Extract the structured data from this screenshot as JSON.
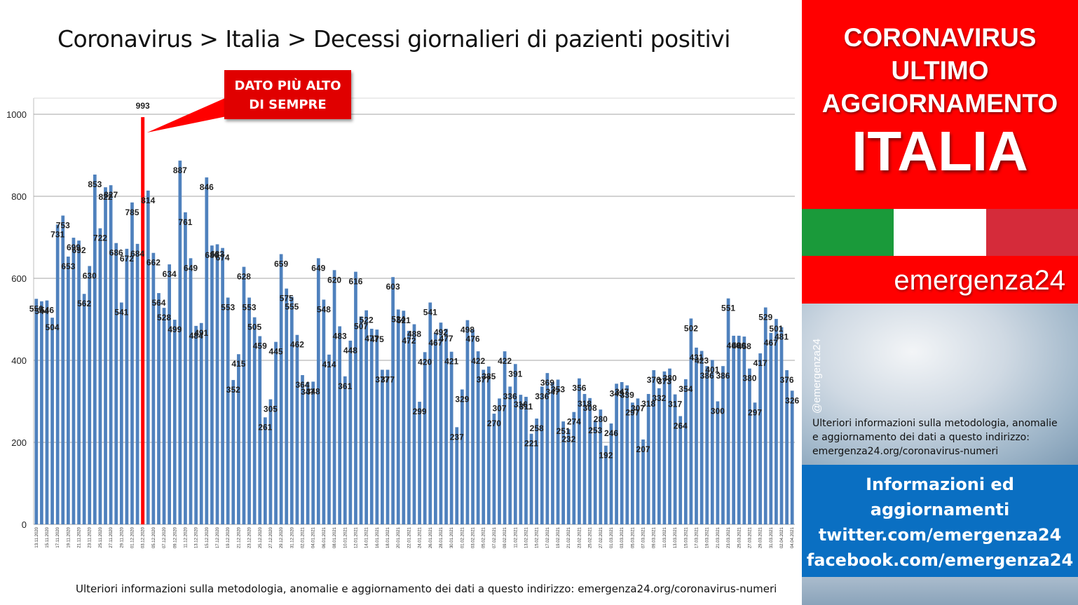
{
  "title": "Coronavirus > Italia > Decessi giornalieri di pazienti positivi",
  "callout": {
    "line1": "DATO PIÙ ALTO",
    "line2": "DI SEMPRE"
  },
  "footnote": "Ulteriori informazioni sulla metodologia, anomalie e aggiornamento dei dati a questo indirizzo: emergenza24.org/coronavirus-numeri",
  "sidebar": {
    "line1": "CORONAVIRUS",
    "line2": "ULTIMO",
    "line3": "AGGIORNAMENTO",
    "country": "ITALIA",
    "brand": "emergenza24",
    "handle": "@emergenza24",
    "info_line1": "Ulteriori informazioni sulla metodologia, anomalie",
    "info_line2": "e aggiornamento dei dati a questo indirizzo:",
    "info_line3": "emergenza24.org/coronavirus-numeri",
    "social_line1": "Informazioni ed",
    "social_line2": "aggiornamenti",
    "social_line3": "twitter.com/emergenza24",
    "social_line4": "facebook.com/emergenza24",
    "flag_colors": [
      "#1a9a3a",
      "#ffffff",
      "#d52b3a"
    ]
  },
  "colors": {
    "bar": "#4f81bd",
    "highlight": "#ff0000",
    "grid": "#a6a6a6"
  },
  "chart_data": {
    "type": "bar",
    "title": "Coronavirus > Italia > Decessi giornalieri di pazienti positivi",
    "ylim": [
      0,
      1000
    ],
    "yticks": [
      0,
      200,
      400,
      600,
      800,
      1000
    ],
    "grid": true,
    "highlight_index": 20,
    "categories": [
      "13.11.2020",
      "14.11.2020",
      "15.11.2020",
      "16.11.2020",
      "17.11.2020",
      "18.11.2020",
      "19.11.2020",
      "20.11.2020",
      "21.11.2020",
      "22.11.2020",
      "23.11.2020",
      "24.11.2020",
      "25.11.2020",
      "26.11.2020",
      "27.11.2020",
      "28.11.2020",
      "29.11.2020",
      "30.11.2020",
      "01.12.2020",
      "02.12.2020",
      "03.12.2020",
      "04.12.2020",
      "05.12.2020",
      "06.12.2020",
      "07.12.2020",
      "08.12.2020",
      "09.12.2020",
      "10.12.2020",
      "11.12.2020",
      "12.12.2020",
      "13.12.2020",
      "14.12.2020",
      "15.12.2020",
      "16.12.2020",
      "17.12.2020",
      "18.12.2020",
      "19.12.2020",
      "20.12.2020",
      "21.12.2020",
      "22.12.2020",
      "23.12.2020",
      "24.12.2020",
      "25.12.2020",
      "26.12.2020",
      "27.12.2020",
      "28.12.2020",
      "29.12.2020",
      "30.12.2020",
      "31.12.2020",
      "01.01.2021",
      "02.01.2021",
      "03.01.2021",
      "04.01.2021",
      "05.01.2021",
      "06.01.2021",
      "07.01.2021",
      "08.01.2021",
      "09.01.2021",
      "10.01.2021",
      "11.01.2021",
      "12.01.2021",
      "13.01.2021",
      "14.01.2021",
      "15.01.2021",
      "16.01.2021",
      "17.01.2021",
      "18.01.2021",
      "19.01.2021",
      "20.01.2021",
      "21.01.2021",
      "22.01.2021",
      "23.01.2021",
      "24.01.2021",
      "25.01.2021",
      "26.01.2021",
      "27.01.2021",
      "28.01.2021",
      "29.01.2021",
      "30.01.2021",
      "31.01.2021",
      "01.02.2021",
      "02.02.2021",
      "03.02.2021",
      "04.02.2021",
      "05.02.2021",
      "06.02.2021",
      "07.02.2021",
      "08.02.2021",
      "09.02.2021",
      "10.02.2021",
      "11.02.2021",
      "12.02.2021",
      "13.02.2021",
      "14.02.2021",
      "15.02.2021",
      "16.02.2021",
      "17.02.2021",
      "18.02.2021",
      "19.02.2021",
      "20.02.2021",
      "21.02.2021",
      "22.02.2021",
      "23.02.2021",
      "24.02.2021",
      "25.02.2021",
      "26.02.2021",
      "27.02.2021",
      "28.02.2021",
      "01.03.2021",
      "02.03.2021",
      "03.03.2021",
      "04.03.2021",
      "05.03.2021",
      "06.03.2021",
      "07.03.2021",
      "08.03.2021",
      "09.03.2021",
      "10.03.2021",
      "11.03.2021",
      "12.03.2021",
      "13.03.2021",
      "14.03.2021",
      "15.03.2021",
      "16.03.2021",
      "17.03.2021",
      "18.03.2021",
      "19.03.2021",
      "20.03.2021",
      "21.03.2021",
      "22.03.2021",
      "23.03.2021",
      "24.03.2021",
      "25.03.2021",
      "26.03.2021",
      "27.03.2021",
      "28.03.2021",
      "29.03.2021",
      "30.03.2021",
      "31.03.2021",
      "01.04.2021",
      "02.04.2021",
      "03.04.2021",
      "04.04.2021"
    ],
    "values": [
      550,
      544,
      546,
      504,
      731,
      753,
      653,
      699,
      692,
      562,
      630,
      853,
      722,
      822,
      827,
      686,
      541,
      672,
      785,
      684,
      993,
      814,
      662,
      564,
      528,
      634,
      499,
      887,
      761,
      649,
      484,
      491,
      846,
      680,
      683,
      674,
      553,
      352,
      415,
      628,
      553,
      505,
      459,
      261,
      305,
      445,
      659,
      575,
      555,
      462,
      364,
      347,
      348,
      649,
      548,
      414,
      620,
      483,
      361,
      448,
      616,
      507,
      522,
      477,
      475,
      377,
      377,
      603,
      524,
      521,
      472,
      488,
      299,
      420,
      541,
      467,
      492,
      477,
      421,
      237,
      329,
      498,
      476,
      422,
      377,
      385,
      270,
      307,
      422,
      336,
      391,
      316,
      311,
      221,
      258,
      336,
      369,
      347,
      353,
      251,
      232,
      274,
      356,
      318,
      308,
      253,
      280,
      192,
      246,
      343,
      347,
      339,
      297,
      307,
      207,
      318,
      376,
      332,
      373,
      380,
      317,
      264,
      354,
      502,
      431,
      423,
      386,
      401,
      300,
      386,
      551,
      460,
      460,
      458,
      380,
      297,
      417,
      529,
      467,
      501,
      481,
      376,
      326
    ]
  }
}
